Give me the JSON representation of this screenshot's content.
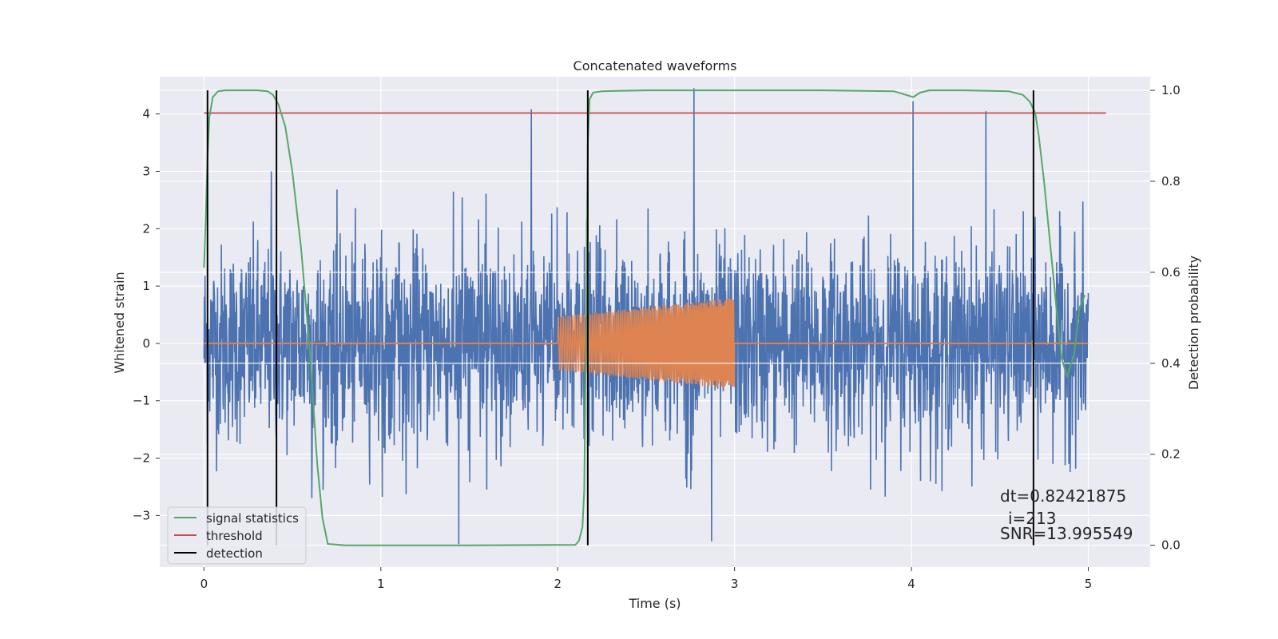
{
  "chart_data": {
    "type": "line",
    "title": "Concatenated waveforms",
    "xlabel": "Time (s)",
    "ylabel": "Whitened strain",
    "ylabel_right": "Detection probability",
    "xlim": [
      -0.25,
      5.35
    ],
    "ylim": [
      -3.9,
      4.65
    ],
    "ylim_right": [
      -0.048,
      1.03
    ],
    "x_ticks": [
      0,
      1,
      2,
      3,
      4,
      5
    ],
    "y_ticks": [
      -3,
      -2,
      -1,
      0,
      1,
      2,
      3,
      4
    ],
    "y_tick_labels": [
      "−3",
      "−2",
      "−1",
      "0",
      "1",
      "2",
      "3",
      "4"
    ],
    "y_right_ticks": [
      0.0,
      0.2,
      0.4,
      0.6,
      0.8,
      1.0
    ],
    "y_right_tick_labels": [
      "0.0",
      "0.2",
      "0.4",
      "0.6",
      "0.8",
      "1.0"
    ],
    "grid": true,
    "legend_position": "lower-left",
    "legend": [
      {
        "name": "signal statistics",
        "color": "#55a868"
      },
      {
        "name": "threshold",
        "color": "#c44e52"
      },
      {
        "name": "detection",
        "color": "#000000"
      }
    ],
    "series": [
      {
        "name": "",
        "color": "#4c72b0",
        "note": "whitened noisy strain, approx amplitude +/-2.5 with spikes",
        "x_range": [
          0,
          5
        ],
        "spikes": [
          {
            "x": 0.38,
            "y": 3.0
          },
          {
            "x": 1.85,
            "y": 4.08
          },
          {
            "x": 2.77,
            "y": 4.45
          },
          {
            "x": 4.01,
            "y": 4.22
          },
          {
            "x": 4.42,
            "y": 4.05
          },
          {
            "x": 1.44,
            "y": -3.5
          },
          {
            "x": 2.87,
            "y": -3.45
          },
          {
            "x": 0.61,
            "y": -2.7
          }
        ]
      },
      {
        "name": "",
        "color": "#dd8452",
        "note": "injected chirp signal, zero except between 2 and 3 s",
        "segments": [
          {
            "x": [
              0,
              2
            ],
            "amplitude": 0
          },
          {
            "x": [
              2,
              3
            ],
            "amplitude_start": 0.47,
            "amplitude_end": 0.8
          },
          {
            "x": [
              3,
              5
            ],
            "amplitude": 0
          }
        ]
      },
      {
        "name": "signal statistics",
        "axis": "right",
        "color": "#55a868",
        "x": [
          0.0,
          0.01,
          0.02,
          0.03,
          0.05,
          0.08,
          0.12,
          0.2,
          0.3,
          0.36,
          0.39,
          0.42,
          0.46,
          0.5,
          0.55,
          0.6,
          0.64,
          0.67,
          0.7,
          0.8,
          1.5,
          2.1,
          2.12,
          2.14,
          2.15,
          2.16,
          2.17,
          2.18,
          2.2,
          2.25,
          2.5,
          3.0,
          3.5,
          3.9,
          3.97,
          4.01,
          4.05,
          4.1,
          4.3,
          4.55,
          4.63,
          4.67,
          4.7,
          4.72,
          4.75,
          4.79,
          4.83,
          4.85,
          4.88,
          4.92,
          4.95,
          4.98
        ],
        "values": [
          0.61,
          0.72,
          0.85,
          0.94,
          0.985,
          0.998,
          1.0,
          1.0,
          1.0,
          0.998,
          0.99,
          0.97,
          0.92,
          0.82,
          0.65,
          0.42,
          0.18,
          0.06,
          0.003,
          0.0,
          0.0,
          0.001,
          0.01,
          0.04,
          0.12,
          0.45,
          0.88,
          0.98,
          0.995,
          0.998,
          1.0,
          1.0,
          1.0,
          0.998,
          0.99,
          0.985,
          0.995,
          1.0,
          1.0,
          0.998,
          0.99,
          0.975,
          0.95,
          0.9,
          0.8,
          0.64,
          0.48,
          0.41,
          0.37,
          0.42,
          0.52,
          0.55
        ]
      },
      {
        "name": "threshold",
        "axis": "right",
        "color": "#c44e52",
        "x": [
          0.0,
          5.1
        ],
        "values": [
          0.95,
          0.95
        ]
      }
    ],
    "detections": [
      0.02,
      0.41,
      2.17,
      4.69
    ],
    "annotations": [
      "dt=0.82421875",
      "i=213",
      "SNR=13.995549"
    ]
  }
}
